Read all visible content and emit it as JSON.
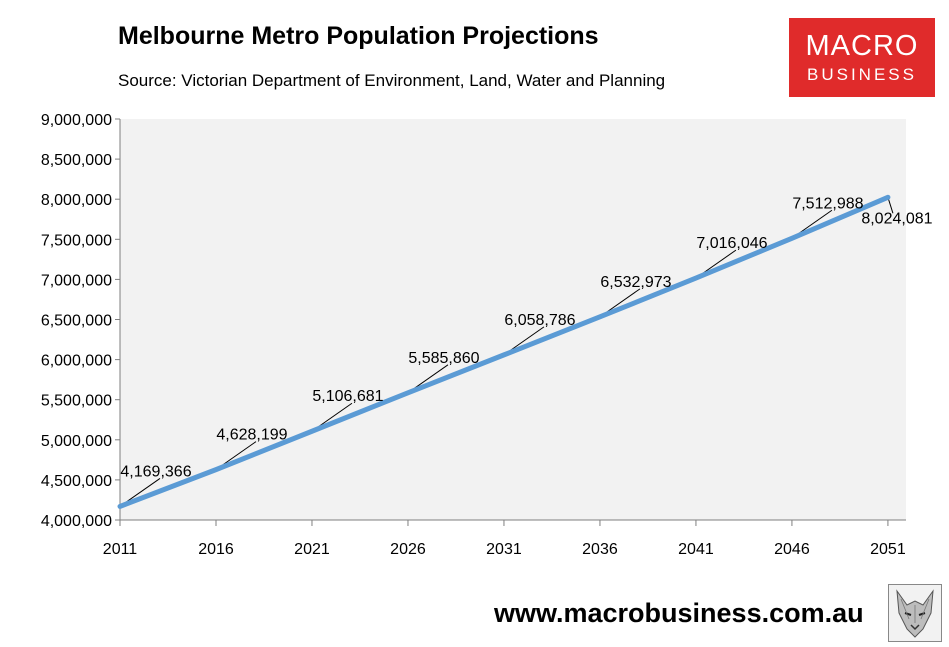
{
  "header": {
    "title": "Melbourne Metro Population Projections",
    "subtitle": "Source: Victorian Department of Environment, Land, Water and Planning"
  },
  "logo": {
    "line1": "MACRO",
    "line2": "BUSINESS",
    "color": "#e02b2b"
  },
  "footer": {
    "url": "www.macrobusiness.com.au",
    "icon": "wolf-icon"
  },
  "chart_data": {
    "type": "line",
    "title": "Melbourne Metro Population Projections",
    "subtitle": "Source: Victorian Department of Environment, Land, Water and Planning",
    "xlabel": "",
    "ylabel": "",
    "categories": [
      "2011",
      "2016",
      "2021",
      "2026",
      "2031",
      "2036",
      "2041",
      "2046",
      "2051"
    ],
    "series": [
      {
        "name": "Melbourne Metro Population",
        "color": "#5b9bd5",
        "values": [
          4169366,
          4628199,
          5106681,
          5585860,
          6058786,
          6532973,
          7016046,
          7512988,
          8024081
        ],
        "labels": [
          "4,169,366",
          "4,628,199",
          "5,106,681",
          "5,585,860",
          "6,058,786",
          "6,532,973",
          "7,016,046",
          "7,512,988",
          "8,024,081"
        ]
      }
    ],
    "ylim": [
      4000000,
      9000000
    ],
    "yticks": [
      4000000,
      4500000,
      5000000,
      5500000,
      6000000,
      6500000,
      7000000,
      7500000,
      8000000,
      8500000,
      9000000
    ],
    "ytick_labels": [
      "4,000,000",
      "4,500,000",
      "5,000,000",
      "5,500,000",
      "6,000,000",
      "6,500,000",
      "7,000,000",
      "7,500,000",
      "8,000,000",
      "8,500,000",
      "9,000,000"
    ],
    "grid": false,
    "plot_background": "#f2f2f2"
  }
}
